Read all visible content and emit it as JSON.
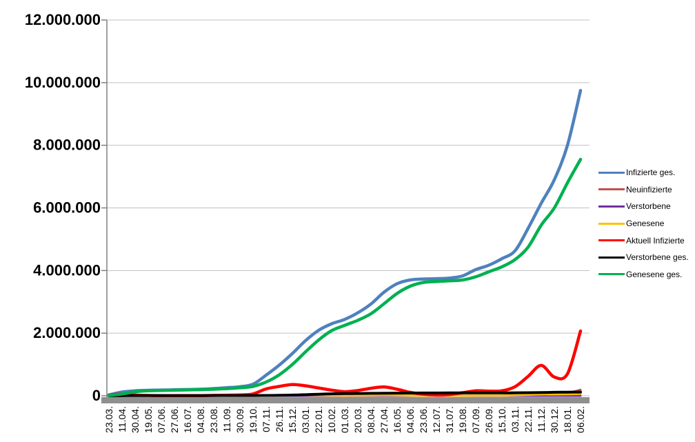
{
  "chart_data": {
    "type": "line",
    "title": "",
    "grid": true,
    "legend_position": "right",
    "colors": {
      "background": "#FFFFFF",
      "gridline": "#C0C0C0",
      "axis": "#808080",
      "x_axis_bar": "#8F8F8F",
      "text": "#000000"
    },
    "y_axis": {
      "min": 0,
      "max": 12000000,
      "tick_interval": 2000000,
      "tick_labels_top_down": [
        "12.000.000",
        "10.000.000",
        "8.000.000",
        "6.000.000",
        "4.000.000",
        "2.000.000",
        "0"
      ]
    },
    "x_axis": {
      "label_rotation_deg": -90
    },
    "categories": [
      "23.03.",
      "11.04.",
      "30.04.",
      "19.05.",
      "07.06.",
      "27.06.",
      "16.07.",
      "04.08.",
      "23.08.",
      "11.09.",
      "30.09.",
      "19.10.",
      "07.11.",
      "26.11.",
      "15.12.",
      "03.01.",
      "22.01.",
      "10.02.",
      "01.03.",
      "20.03.",
      "08.04.",
      "27.04.",
      "16.05.",
      "04.06.",
      "23.06.",
      "12.07.",
      "31.07.",
      "19.08.",
      "07.09.",
      "26.09.",
      "15.10.",
      "03.11.",
      "22.11.",
      "11.12.",
      "30.12.",
      "18.01.",
      "06.02."
    ],
    "series": [
      {
        "name": "Infizierte ges.",
        "color": "#4F81BD",
        "width": 4.5,
        "values": [
          30000,
          120000,
          160000,
          176000,
          184000,
          193000,
          201000,
          211000,
          232000,
          259000,
          291000,
          370000,
          660000,
          980000,
          1350000,
          1760000,
          2090000,
          2300000,
          2440000,
          2650000,
          2930000,
          3310000,
          3580000,
          3700000,
          3730000,
          3740000,
          3760000,
          3830000,
          4030000,
          4170000,
          4380000,
          4630000,
          5350000,
          6150000,
          6900000,
          8000000,
          9750000
        ]
      },
      {
        "name": "Neuinfizierte",
        "color": "#C0504D",
        "width": 3,
        "values": [
          4000,
          6000,
          2000,
          1000,
          400,
          500,
          400,
          900,
          1500,
          1300,
          2100,
          7000,
          20000,
          22000,
          29000,
          22000,
          16000,
          8000,
          9000,
          16000,
          20000,
          23000,
          12000,
          4000,
          1000,
          1500,
          3000,
          8000,
          12000,
          8000,
          11000,
          34000,
          50000,
          61000,
          40000,
          92000,
          190000
        ]
      },
      {
        "name": "Verstorbene",
        "color": "#7030A0",
        "width": 3,
        "values": [
          40,
          180,
          200,
          110,
          40,
          10,
          5,
          10,
          10,
          10,
          10,
          30,
          120,
          300,
          500,
          700,
          800,
          550,
          350,
          200,
          220,
          250,
          200,
          100,
          70,
          30,
          20,
          25,
          60,
          70,
          80,
          130,
          250,
          400,
          350,
          200,
          180
        ]
      },
      {
        "name": "Genesene",
        "color": "#FFC000",
        "width": 3,
        "values": [
          1500,
          5000,
          4000,
          2000,
          800,
          600,
          500,
          700,
          1100,
          1100,
          1500,
          4000,
          12000,
          18000,
          25000,
          24000,
          20000,
          12000,
          8000,
          12000,
          17000,
          21000,
          17000,
          8000,
          3000,
          1500,
          2000,
          5000,
          9000,
          8000,
          9000,
          20000,
          30000,
          45000,
          45000,
          50000,
          60000
        ]
      },
      {
        "name": "Aktuell Infizierte",
        "color": "#FF0000",
        "width": 4.5,
        "values": [
          19000,
          57000,
          24000,
          10000,
          6000,
          5000,
          4000,
          6000,
          13000,
          20000,
          26000,
          60000,
          220000,
          300000,
          360000,
          320000,
          250000,
          180000,
          130000,
          170000,
          240000,
          285000,
          210000,
          110000,
          50000,
          20000,
          40000,
          100000,
          160000,
          150000,
          160000,
          290000,
          620000,
          970000,
          600000,
          700000,
          2070000
        ]
      },
      {
        "name": "Verstorbene ges.",
        "color": "#000000",
        "width": 4,
        "values": [
          300,
          2800,
          6300,
          8100,
          8700,
          8900,
          9100,
          9200,
          9300,
          9400,
          9500,
          9800,
          11000,
          15000,
          23500,
          34500,
          51000,
          63000,
          70000,
          74500,
          78500,
          82500,
          86000,
          89000,
          90500,
          91200,
          91700,
          92000,
          92500,
          93300,
          94500,
          96000,
          99000,
          104000,
          111500,
          116000,
          119000
        ]
      },
      {
        "name": "Genesene ges.",
        "color": "#00B050",
        "width": 4.5,
        "values": [
          10000,
          60000,
          130000,
          158000,
          170000,
          179000,
          188000,
          196000,
          210000,
          230000,
          256000,
          300000,
          440000,
          670000,
          1000000,
          1400000,
          1780000,
          2080000,
          2250000,
          2410000,
          2620000,
          2940000,
          3270000,
          3500000,
          3620000,
          3650000,
          3670000,
          3700000,
          3800000,
          3960000,
          4120000,
          4350000,
          4750000,
          5450000,
          6000000,
          6800000,
          7550000
        ]
      }
    ]
  }
}
